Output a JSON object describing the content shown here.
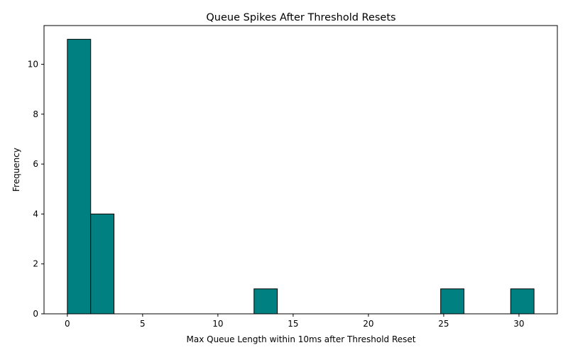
{
  "chart_data": {
    "type": "bar",
    "title": "Queue Spikes After Threshold Resets",
    "xlabel": "Max Queue Length within 10ms after Threshold Reset",
    "ylabel": "Frequency",
    "xlim": [
      -1.55,
      32.55
    ],
    "ylim": [
      0,
      11.55
    ],
    "x_ticks": [
      0,
      5,
      10,
      15,
      20,
      25,
      30
    ],
    "y_ticks": [
      0,
      2,
      4,
      6,
      8,
      10
    ],
    "grid": false,
    "bins": [
      {
        "start": 0.0,
        "end": 1.55,
        "count": 11
      },
      {
        "start": 1.55,
        "end": 3.1,
        "count": 4
      },
      {
        "start": 12.4,
        "end": 13.95,
        "count": 1
      },
      {
        "start": 24.8,
        "end": 26.35,
        "count": 1
      },
      {
        "start": 29.45,
        "end": 31.0,
        "count": 1
      }
    ],
    "bar_color": "#008080",
    "edge_color": "#000000"
  }
}
